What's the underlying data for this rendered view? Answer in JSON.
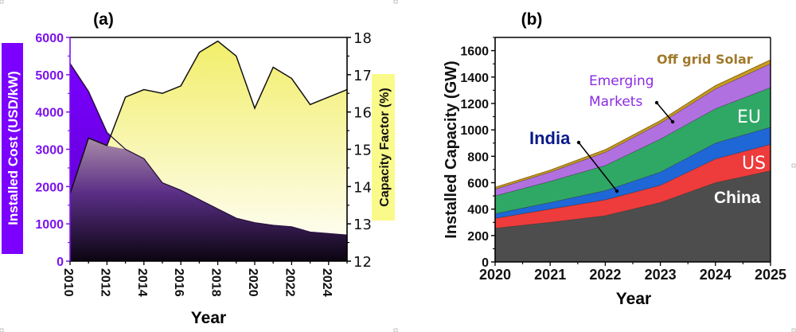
{
  "chart_data": [
    {
      "panel": "(a)",
      "type": "area",
      "title": "",
      "xlabel": "Year",
      "ylabel": "Installed Cost (USD/kW)",
      "y2label": "Capacity Factor (%)",
      "x": [
        2010,
        2011,
        2012,
        2013,
        2014,
        2015,
        2016,
        2017,
        2018,
        2019,
        2020,
        2021,
        2022,
        2023,
        2024,
        2025
      ],
      "xlim": [
        2010,
        2025
      ],
      "ylim": [
        0,
        6000
      ],
      "y2lim": [
        12,
        18
      ],
      "xticks": [
        "2010",
        "2012",
        "2014",
        "2016",
        "2018",
        "2020",
        "2022",
        "2024"
      ],
      "yticks": [
        "0",
        "1000",
        "2000",
        "3000",
        "4000",
        "5000",
        "6000"
      ],
      "y2ticks": [
        "12",
        "13",
        "14",
        "15",
        "16",
        "17",
        "18"
      ],
      "series": [
        {
          "name": "Installed Cost (USD/kW)",
          "axis": "left",
          "color": "#7b00ff",
          "values": [
            5300,
            4550,
            3450,
            3000,
            2750,
            2100,
            1900,
            1650,
            1400,
            1150,
            1030,
            960,
            920,
            780,
            740,
            700
          ]
        },
        {
          "name": "Capacity Factor (%)",
          "axis": "right",
          "color": "#f5f07a",
          "values": [
            13.8,
            15.3,
            15.1,
            16.4,
            16.6,
            16.5,
            16.7,
            17.6,
            17.9,
            17.5,
            16.1,
            17.2,
            16.9,
            16.2,
            16.4,
            16.6
          ]
        }
      ],
      "colors": {
        "left_axis": "#7b12f0",
        "left_label_bg": "#7b00ff",
        "right_label_bg": "#fafa8a"
      }
    },
    {
      "panel": "(b)",
      "type": "area",
      "stacked": true,
      "title": "",
      "xlabel": "Year",
      "ylabel": "Installed Capacity (GW)",
      "x": [
        2020,
        2021,
        2022,
        2023,
        2024,
        2025
      ],
      "xlim": [
        2020,
        2025
      ],
      "ylim": [
        0,
        1700
      ],
      "xticks": [
        "2020",
        "2021",
        "2022",
        "2023",
        "2024",
        "2025"
      ],
      "yticks": [
        "0",
        "200",
        "400",
        "600",
        "800",
        "1000",
        "1200",
        "1400",
        "1600"
      ],
      "series": [
        {
          "name": "China",
          "color": "#4d4d4d",
          "values": [
            255,
            300,
            350,
            450,
            600,
            690
          ]
        },
        {
          "name": "US",
          "color": "#ee3b3b",
          "values": [
            75,
            100,
            120,
            130,
            180,
            200
          ]
        },
        {
          "name": "India",
          "color": "#1f66d6",
          "values": [
            35,
            50,
            70,
            100,
            120,
            130
          ]
        },
        {
          "name": "EU",
          "color": "#2fa866",
          "values": [
            135,
            160,
            190,
            250,
            260,
            300
          ]
        },
        {
          "name": "Emerging Markets",
          "color": "#b070e0",
          "values": [
            50,
            70,
            100,
            120,
            150,
            180
          ]
        },
        {
          "name": "Off grid Solar",
          "color": "#c99a20",
          "values": [
            15,
            15,
            20,
            20,
            25,
            30
          ]
        }
      ],
      "annotations": [
        {
          "text": "Off grid Solar",
          "color": "#a07a2a"
        },
        {
          "text_lines": [
            "Emerging",
            "Markets"
          ],
          "color": "#8b2be2"
        },
        {
          "text": "EU",
          "color": "#ffffff"
        },
        {
          "text": "India",
          "color": "#0a1a8a"
        },
        {
          "text": "US",
          "color": "#ffffff"
        },
        {
          "text": "China",
          "color": "#ffffff"
        }
      ]
    }
  ]
}
